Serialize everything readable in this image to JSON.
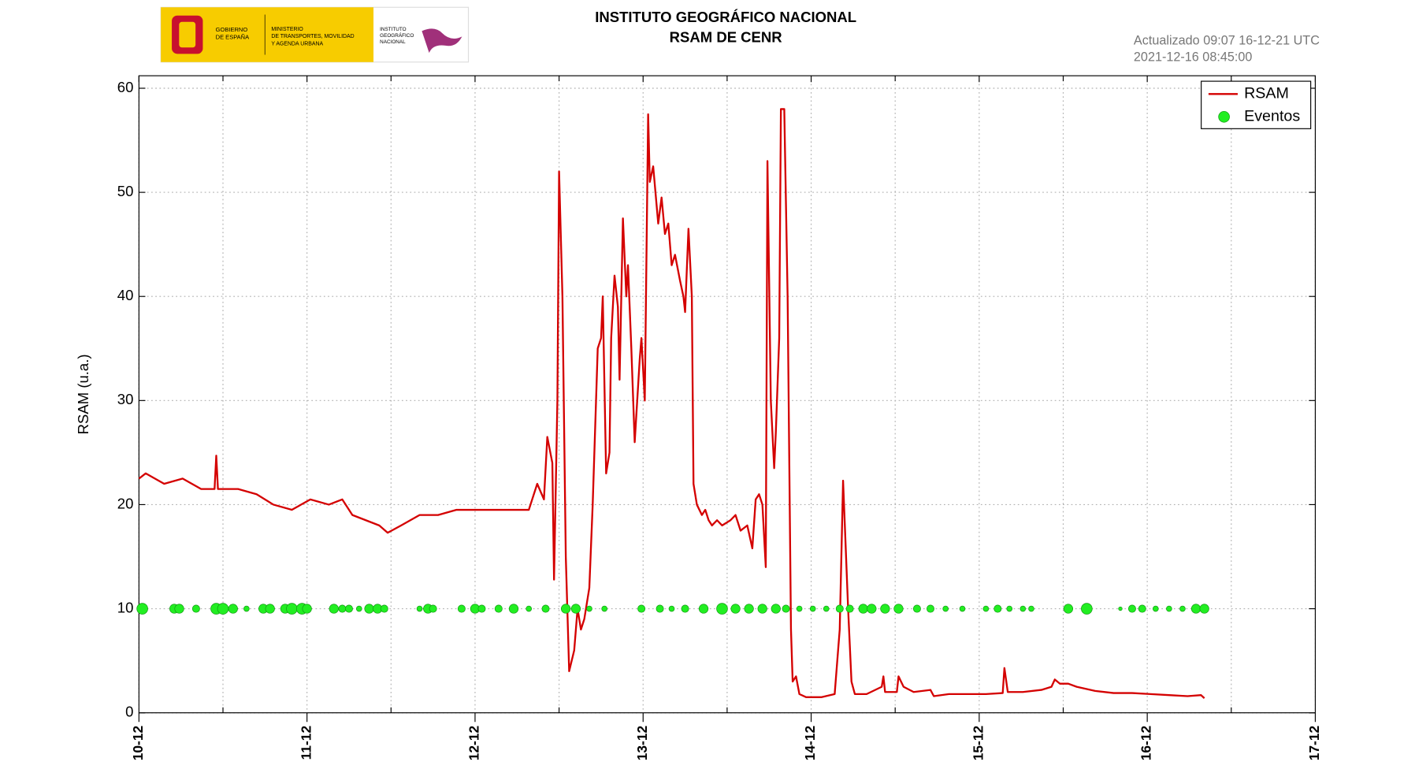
{
  "header": {
    "title": "INSTITUTO GEOGRÁFICO NACIONAL",
    "subtitle": "RSAM DE CENR",
    "updated": "Actualizado 09:07 16-12-21 UTC",
    "timestamp": "2021-12-16 08:45:00",
    "logo": {
      "government": [
        "GOBIERNO",
        "DE ESPAÑA"
      ],
      "ministry": [
        "MINISTERIO",
        "DE TRANSPORTES, MOVILIDAD",
        "Y AGENDA URBANA"
      ],
      "institute": [
        "INSTITUTO",
        "GEOGRÁFICO",
        "NACIONAL"
      ]
    }
  },
  "chart_data": {
    "type": "line",
    "ylabel": "RSAM (u.a.)",
    "xlim": [
      0,
      7
    ],
    "xticks": [
      {
        "value": 0,
        "label": "10-12"
      },
      {
        "value": 1,
        "label": "11-12"
      },
      {
        "value": 2,
        "label": "12-12"
      },
      {
        "value": 3,
        "label": "13-12"
      },
      {
        "value": 4,
        "label": "14-12"
      },
      {
        "value": 5,
        "label": "15-12"
      },
      {
        "value": 6,
        "label": "16-12"
      },
      {
        "value": 7,
        "label": "17-12"
      }
    ],
    "xminorticks": [
      0.5,
      1.5,
      2.5,
      3.5,
      4.5,
      5.5,
      6.5
    ],
    "ylim": [
      0,
      61.2
    ],
    "yticks": [
      0,
      10,
      20,
      30,
      40,
      50,
      60
    ],
    "grid": true,
    "legend": "upper right",
    "series": [
      {
        "name": "RSAM",
        "type": "line",
        "color": "#d40000",
        "x": [
          0,
          0.04,
          0.15,
          0.26,
          0.37,
          0.45,
          0.46,
          0.47,
          0.59,
          0.7,
          0.8,
          0.91,
          1.02,
          1.13,
          1.21,
          1.27,
          1.35,
          1.43,
          1.48,
          1.56,
          1.67,
          1.78,
          1.89,
          2.0,
          2.11,
          2.22,
          2.32,
          2.37,
          2.41,
          2.43,
          2.46,
          2.47,
          2.49,
          2.5,
          2.52,
          2.54,
          2.56,
          2.59,
          2.61,
          2.63,
          2.65,
          2.68,
          2.7,
          2.73,
          2.75,
          2.76,
          2.78,
          2.8,
          2.81,
          2.83,
          2.85,
          2.86,
          2.88,
          2.9,
          2.91,
          2.93,
          2.95,
          2.98,
          2.99,
          3.01,
          3.03,
          3.04,
          3.06,
          3.09,
          3.11,
          3.13,
          3.15,
          3.17,
          3.19,
          3.22,
          3.24,
          3.25,
          3.27,
          3.29,
          3.3,
          3.32,
          3.35,
          3.37,
          3.39,
          3.41,
          3.44,
          3.47,
          3.52,
          3.55,
          3.58,
          3.62,
          3.65,
          3.67,
          3.69,
          3.71,
          3.73,
          3.74,
          3.76,
          3.78,
          3.79,
          3.81,
          3.82,
          3.84,
          3.86,
          3.88,
          3.89,
          3.91,
          3.93,
          3.97,
          4.06,
          4.14,
          4.17,
          4.19,
          4.22,
          4.24,
          4.26,
          4.33,
          4.42,
          4.43,
          4.44,
          4.51,
          4.52,
          4.55,
          4.61,
          4.71,
          4.73,
          4.82,
          4.93,
          5.04,
          5.14,
          5.15,
          5.17,
          5.26,
          5.37,
          5.43,
          5.45,
          5.48,
          5.53,
          5.58,
          5.69,
          5.8,
          5.91,
          6.02,
          6.13,
          6.24,
          6.32,
          6.34
        ],
        "values": [
          22.5,
          23,
          22,
          22.5,
          21.5,
          21.5,
          24.7,
          21.5,
          21.5,
          21,
          20,
          19.5,
          20.5,
          20,
          20.5,
          19,
          18.5,
          18,
          17.3,
          18,
          19,
          19,
          19.5,
          19.5,
          19.5,
          19.5,
          19.5,
          22,
          20.5,
          26.5,
          24,
          12.8,
          30,
          52,
          40,
          15,
          4,
          6,
          10,
          8,
          9,
          12,
          20,
          35,
          36,
          40,
          23,
          25,
          36,
          42,
          39,
          32,
          47.5,
          40,
          43,
          35,
          26,
          34,
          36,
          30,
          57.5,
          51,
          52.5,
          47,
          49.5,
          46,
          47,
          43,
          44,
          41.5,
          40,
          38.5,
          46.5,
          40,
          22,
          20,
          19,
          19.5,
          18.5,
          18,
          18.5,
          18,
          18.5,
          19,
          17.5,
          18,
          15.8,
          20.5,
          21,
          20,
          14,
          53,
          30,
          23.5,
          27,
          36,
          58,
          58,
          40,
          8,
          3,
          3.5,
          1.8,
          1.5,
          1.5,
          1.8,
          8,
          22.3,
          10,
          3,
          1.8,
          1.8,
          2.5,
          3.5,
          2,
          2,
          3.5,
          2.5,
          2,
          2.2,
          1.6,
          1.8,
          1.8,
          1.8,
          1.9,
          4.3,
          2,
          2,
          2.2,
          2.5,
          3.2,
          2.8,
          2.8,
          2.5,
          2.1,
          1.9,
          1.9,
          1.8,
          1.7,
          1.6,
          1.7,
          1.4
        ]
      },
      {
        "name": "Eventos",
        "type": "scatter",
        "color": "#22ee22",
        "x": [
          0.02,
          0.21,
          0.24,
          0.34,
          0.46,
          0.5,
          0.56,
          0.64,
          0.74,
          0.78,
          0.87,
          0.91,
          0.97,
          1.0,
          1.16,
          1.21,
          1.25,
          1.31,
          1.37,
          1.42,
          1.46,
          1.67,
          1.72,
          1.75,
          1.92,
          2.0,
          2.04,
          2.14,
          2.23,
          2.32,
          2.42,
          2.54,
          2.6,
          2.68,
          2.77,
          2.99,
          3.1,
          3.17,
          3.25,
          3.36,
          3.47,
          3.55,
          3.63,
          3.71,
          3.79,
          3.85,
          3.93,
          4.01,
          4.09,
          4.17,
          4.23,
          4.31,
          4.36,
          4.44,
          4.52,
          4.63,
          4.71,
          4.8,
          4.9,
          5.04,
          5.11,
          5.18,
          5.26,
          5.31,
          5.53,
          5.64,
          5.84,
          5.91,
          5.97,
          6.05,
          6.13,
          6.21,
          6.29,
          6.34
        ],
        "values": [
          10,
          10,
          10,
          10,
          10,
          10,
          10,
          10,
          10,
          10,
          10,
          10,
          10,
          10,
          10,
          10,
          10,
          10,
          10,
          10,
          10,
          10,
          10,
          10,
          10,
          10,
          10,
          10,
          10,
          10,
          10,
          10,
          10,
          10,
          10,
          10,
          10,
          10,
          10,
          10,
          10,
          10,
          10,
          10,
          10,
          10,
          10,
          10,
          10,
          10,
          10,
          10,
          10,
          10,
          10,
          10,
          10,
          10,
          10,
          10,
          10,
          10,
          10,
          10,
          10,
          10,
          10,
          10,
          10,
          10,
          10,
          10,
          10,
          10
        ],
        "sizes": [
          6,
          5,
          5,
          4,
          6,
          6,
          5,
          3,
          5,
          5,
          5,
          6,
          6,
          5,
          5,
          4,
          4,
          3,
          5,
          5,
          4,
          3,
          5,
          4,
          4,
          5,
          4,
          4,
          5,
          3,
          4,
          5,
          5,
          3,
          3,
          4,
          4,
          3,
          4,
          5,
          6,
          5,
          5,
          5,
          5,
          4,
          3,
          3,
          3,
          4,
          4,
          5,
          5,
          5,
          5,
          4,
          4,
          3,
          3,
          3,
          4,
          3,
          3,
          3,
          5,
          6,
          2,
          4,
          4,
          3,
          3,
          3,
          5,
          5
        ]
      }
    ]
  }
}
